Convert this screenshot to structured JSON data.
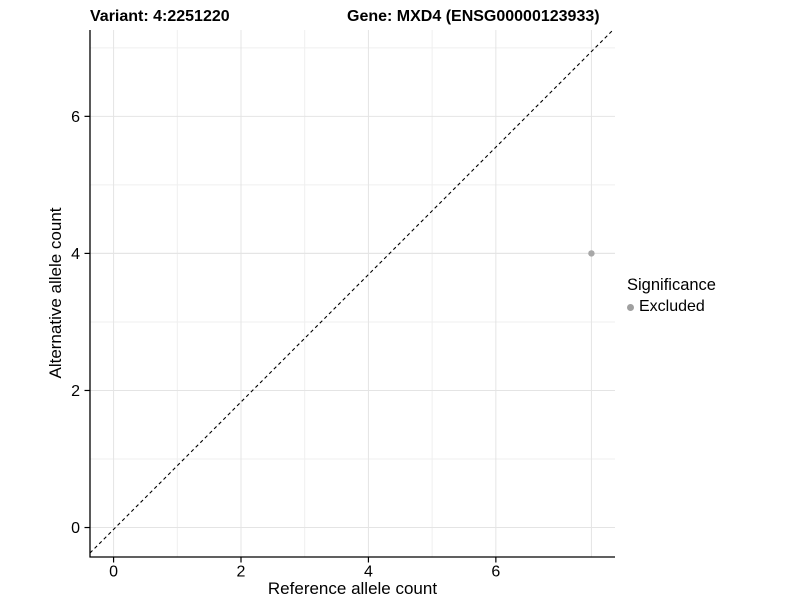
{
  "chart_data": {
    "type": "scatter",
    "titles": {
      "left": "Variant: 4:2251220",
      "right": "Gene: MXD4 (ENSG00000123933)"
    },
    "xlabel": "Reference allele count",
    "ylabel": "Alternative allele count",
    "x_breaks": [
      0,
      2,
      4,
      6
    ],
    "x_minor_breaks": [
      1,
      3,
      5
    ],
    "y_breaks": [
      0,
      2,
      4,
      6
    ],
    "y_minor_breaks": [
      1,
      3,
      5,
      7
    ],
    "x_tick_labels": [
      "0",
      "2",
      "4",
      "6"
    ],
    "y_tick_labels": [
      "0",
      "2",
      "4",
      "6"
    ],
    "xlim": [
      -0.37,
      7.87
    ],
    "ylim": [
      -0.43,
      7.26
    ],
    "grid": true,
    "identity_line": {
      "present": true,
      "equation": "y = x",
      "style": "dashed",
      "color": "#000000"
    },
    "points": [
      {
        "x": 7.5,
        "y": 4,
        "significance": "Excluded",
        "color": "#a8a8a8",
        "crosshair": true
      }
    ],
    "legend": {
      "title": "Significance",
      "position": "right",
      "entries": [
        {
          "label": "Excluded",
          "color": "#a0a0a0",
          "marker": "circle"
        }
      ]
    }
  },
  "colors": {
    "background": "#ffffff",
    "grid_major": "#e4e4e4",
    "grid_minor": "#efefef",
    "axis_line": "#000000",
    "tick_text": "#000000",
    "title_text": "#000000",
    "point": "#a8a8a8"
  }
}
